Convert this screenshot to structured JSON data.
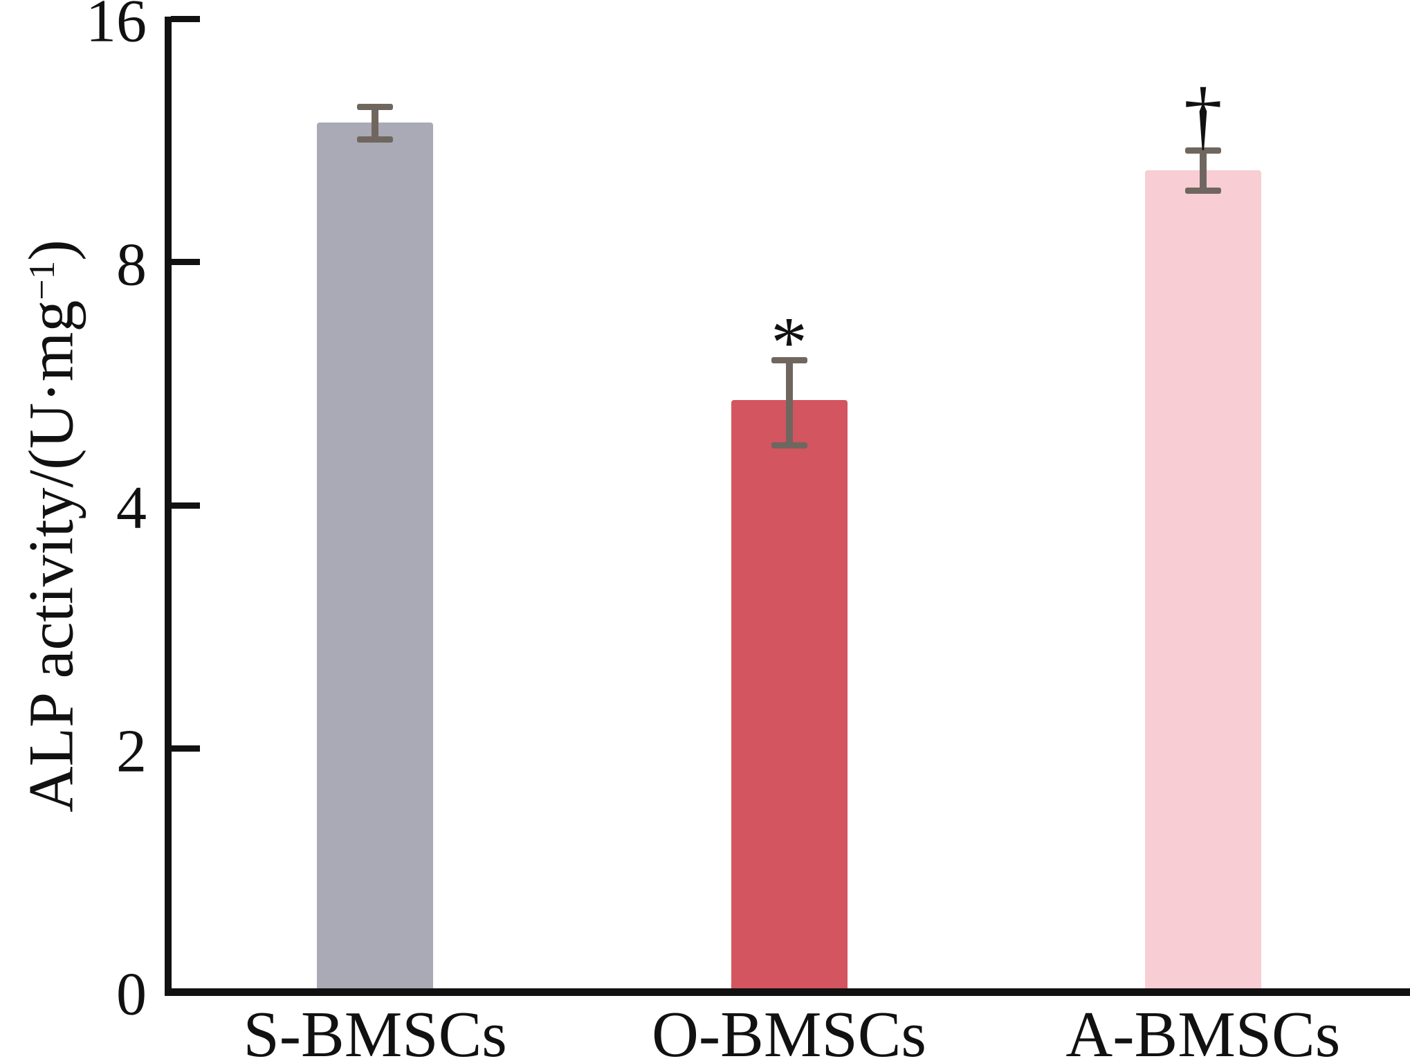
{
  "figure": {
    "background": "#ffffff",
    "axis_color": "#111111",
    "text_color": "#111111"
  },
  "y_axis_label": {
    "prefix": "ALP activity/(U·mg",
    "superscript": "−1",
    "suffix": ")"
  },
  "chart_data": {
    "type": "bar",
    "title": "",
    "categories": [
      "S-BMSCs",
      "O-BMSCs",
      "A-BMSCs"
    ],
    "values": [
      11.9,
      5.4,
      10.4
    ],
    "errors": [
      0.55,
      0.65,
      0.6
    ],
    "annotations": [
      "",
      "*",
      "†"
    ],
    "bar_colors": [
      "#a9aab5",
      "#d2555f",
      "#f9cdd4"
    ],
    "error_color": "#6f675f",
    "xlabel": "",
    "ylabel": "ALP activity/(U·mg⁻¹)",
    "yscale": "log2",
    "yticks": [
      0,
      2,
      4,
      8,
      16
    ],
    "ylim": [
      0,
      16
    ],
    "grid": false,
    "legend": null
  }
}
